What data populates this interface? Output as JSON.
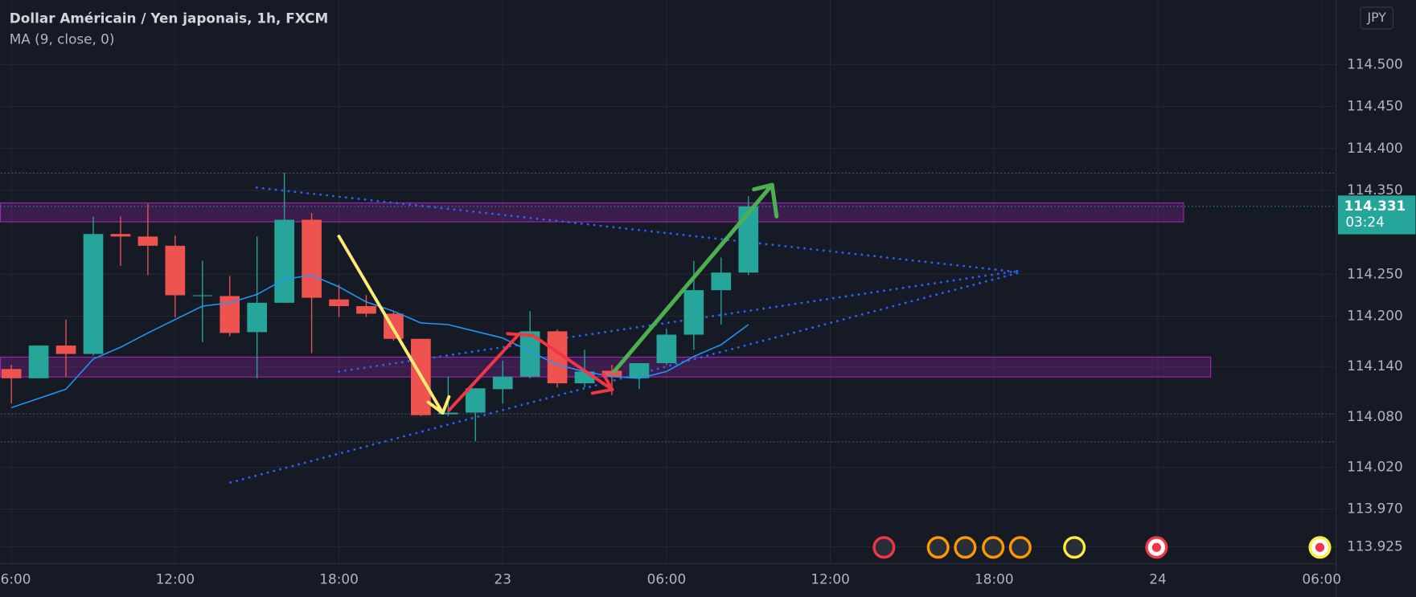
{
  "chart_data": {
    "type": "candlestick",
    "title": "Dollar Américain / Yen japonais, 1h, FXCM",
    "currency": "JPY",
    "x": [
      0,
      1,
      2,
      3,
      4,
      5,
      6,
      7,
      8,
      9,
      10,
      11,
      12,
      13,
      14,
      15,
      16,
      17,
      18,
      19,
      20,
      21,
      22,
      23,
      24,
      25,
      26,
      27
    ],
    "open": [
      114.137,
      114.126,
      114.165,
      114.155,
      114.298,
      114.295,
      114.284,
      114.224,
      114.224,
      114.181,
      114.216,
      114.315,
      114.22,
      114.212,
      114.203,
      114.173,
      114.083,
      114.085,
      114.113,
      114.128,
      114.182,
      114.12,
      114.135,
      114.126,
      114.144,
      114.178,
      114.231,
      114.252
    ],
    "high": [
      114.142,
      114.165,
      114.196,
      114.319,
      114.319,
      114.334,
      114.296,
      114.266,
      114.248,
      114.295,
      114.371,
      114.323,
      114.238,
      114.225,
      114.206,
      114.173,
      114.128,
      114.114,
      114.147,
      114.206,
      114.184,
      114.16,
      114.142,
      114.144,
      114.185,
      114.266,
      114.27,
      114.343
    ],
    "low": [
      114.096,
      114.126,
      114.128,
      114.153,
      114.26,
      114.249,
      114.199,
      114.169,
      114.176,
      114.126,
      114.216,
      114.156,
      114.199,
      114.199,
      114.171,
      114.081,
      114.081,
      114.051,
      114.096,
      114.126,
      114.115,
      114.115,
      114.106,
      114.113,
      114.142,
      114.16,
      114.19,
      114.249
    ],
    "close": [
      114.126,
      114.165,
      114.155,
      114.298,
      114.295,
      114.284,
      114.225,
      114.225,
      114.18,
      114.216,
      114.315,
      114.222,
      114.212,
      114.203,
      114.173,
      114.082,
      114.085,
      114.114,
      114.128,
      114.182,
      114.12,
      114.134,
      114.128,
      114.144,
      114.178,
      114.231,
      114.252,
      114.331
    ],
    "up_color": "#26a69a",
    "down_color": "#ef5350",
    "ma": {
      "name": "MA (9, close, 0)",
      "color": "#2196f3",
      "values": [
        114.091,
        114.102,
        114.113,
        114.149,
        114.163,
        114.18,
        114.196,
        114.212,
        114.216,
        114.226,
        114.244,
        114.249,
        114.235,
        114.217,
        114.206,
        114.192,
        114.19,
        114.182,
        114.174,
        114.158,
        114.142,
        114.134,
        114.128,
        114.126,
        114.134,
        114.152,
        114.166,
        114.19
      ]
    },
    "current_price": 114.331,
    "countdown": "03:24",
    "xlim": [
      -0.4,
      48.53
    ],
    "xticks": [
      {
        "value": 0,
        "label": "06:00"
      },
      {
        "value": 6,
        "label": "12:00"
      },
      {
        "value": 12,
        "label": "18:00"
      },
      {
        "value": 18,
        "label": "23"
      },
      {
        "value": 24,
        "label": "06:00"
      },
      {
        "value": 30,
        "label": "12:00"
      },
      {
        "value": 36,
        "label": "18:00"
      },
      {
        "value": 42,
        "label": "24"
      },
      {
        "value": 48,
        "label": "06:00"
      }
    ],
    "ylim": [
      113.905,
      114.577
    ],
    "yticks": [
      {
        "value": 114.5,
        "label": "114.500"
      },
      {
        "value": 114.45,
        "label": "114.450"
      },
      {
        "value": 114.4,
        "label": "114.400"
      },
      {
        "value": 114.35,
        "label": "114.350"
      },
      {
        "value": 114.25,
        "label": "114.250"
      },
      {
        "value": 114.2,
        "label": "114.200"
      },
      {
        "value": 114.14,
        "label": "114.140"
      },
      {
        "value": 114.08,
        "label": "114.080"
      },
      {
        "value": 114.02,
        "label": "114.020"
      },
      {
        "value": 113.97,
        "label": "113.970"
      },
      113.925
    ],
    "grid": true
  }
}
